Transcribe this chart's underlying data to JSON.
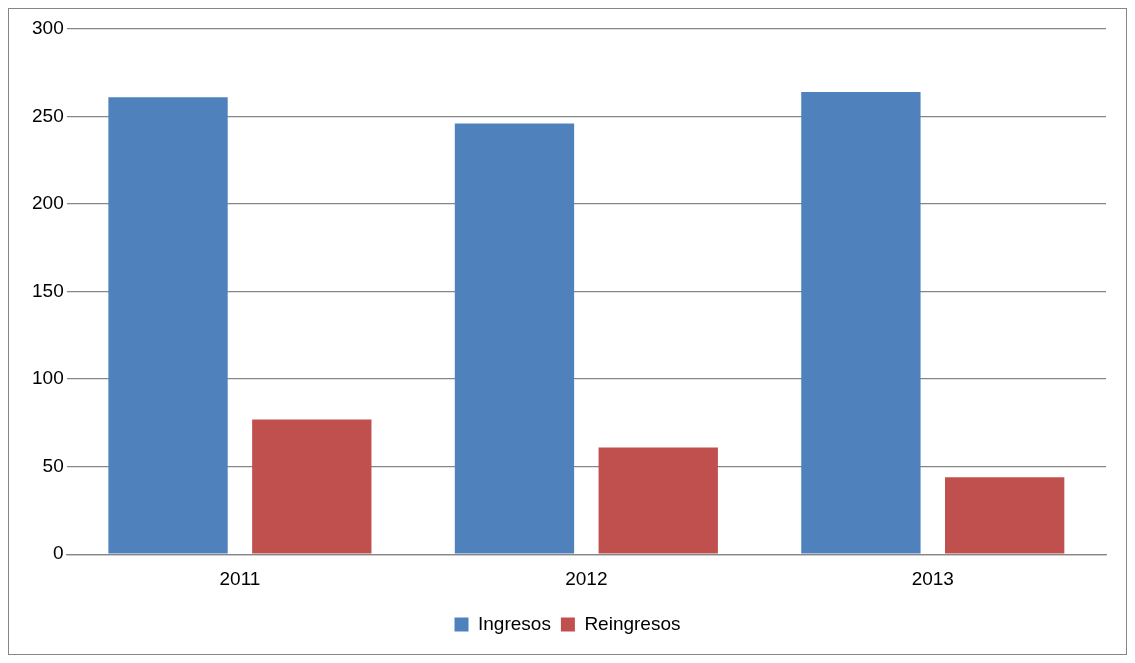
{
  "chart_data": {
    "type": "bar",
    "categories": [
      "2011",
      "2012",
      "2013"
    ],
    "series": [
      {
        "name": "Ingresos",
        "color": "#4f81bd",
        "values": [
          261,
          246,
          264
        ]
      },
      {
        "name": "Reingresos",
        "color": "#c0504d",
        "values": [
          77,
          61,
          44
        ]
      }
    ],
    "ylim": [
      0,
      300
    ],
    "yticks": [
      0,
      50,
      100,
      150,
      200,
      250,
      300
    ],
    "grid": "y",
    "legend": "bottom"
  }
}
